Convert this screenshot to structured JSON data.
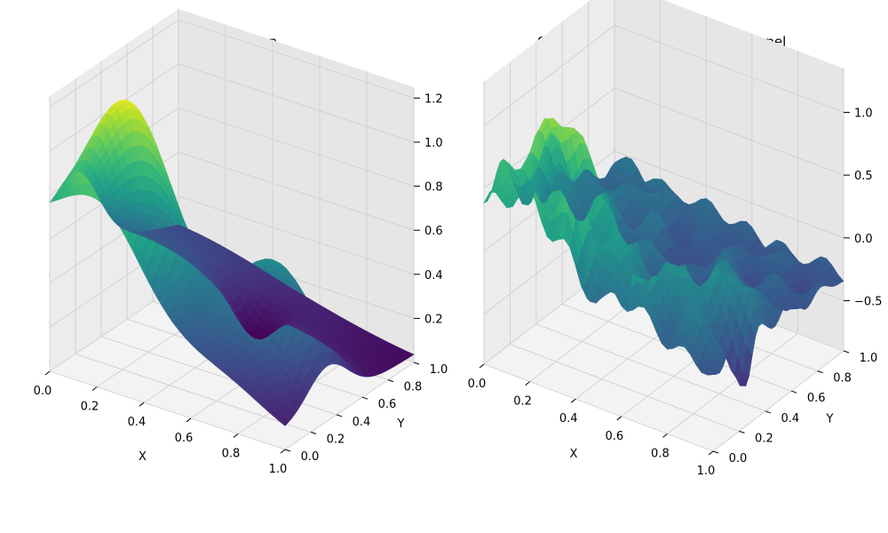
{
  "chart_data": [
    {
      "type": "surface3d",
      "title": "Franke Function",
      "xlabel": "X",
      "ylabel": "Y",
      "zlabel": "",
      "colormap": "viridis",
      "xlim": [
        0,
        1
      ],
      "ylim": [
        0,
        1
      ],
      "zlim": [
        0.0,
        1.25
      ],
      "x_ticks": [
        "0.0",
        "0.2",
        "0.4",
        "0.6",
        "0.8",
        "1.0"
      ],
      "y_ticks": [
        "0.0",
        "0.2",
        "0.4",
        "0.6",
        "0.8",
        "1.0"
      ],
      "z_ticks": [
        "0.2",
        "0.4",
        "0.6",
        "0.8",
        "1.0",
        "1.2"
      ],
      "z_tick_values": [
        0.2,
        0.4,
        0.6,
        0.8,
        1.0,
        1.2
      ],
      "grid": true,
      "surface": "franke"
    },
    {
      "type": "surface3d",
      "title": "GPR Prediction - Constant*RBF kernel",
      "xlabel": "X",
      "ylabel": "Y",
      "zlabel": "",
      "colormap": "viridis",
      "xlim": [
        0,
        1
      ],
      "ylim": [
        0,
        1
      ],
      "zlim": [
        -0.9,
        1.35
      ],
      "x_ticks": [
        "0.0",
        "0.2",
        "0.4",
        "0.6",
        "0.8",
        "1.0"
      ],
      "y_ticks": [
        "0.0",
        "0.2",
        "0.4",
        "0.6",
        "0.8",
        "1.0"
      ],
      "z_ticks": [
        "−0.5",
        "0.0",
        "0.5",
        "1.0"
      ],
      "z_tick_values": [
        -0.5,
        0.0,
        0.5,
        1.0
      ],
      "grid": true,
      "surface": "gpr_noisy_franke"
    }
  ]
}
